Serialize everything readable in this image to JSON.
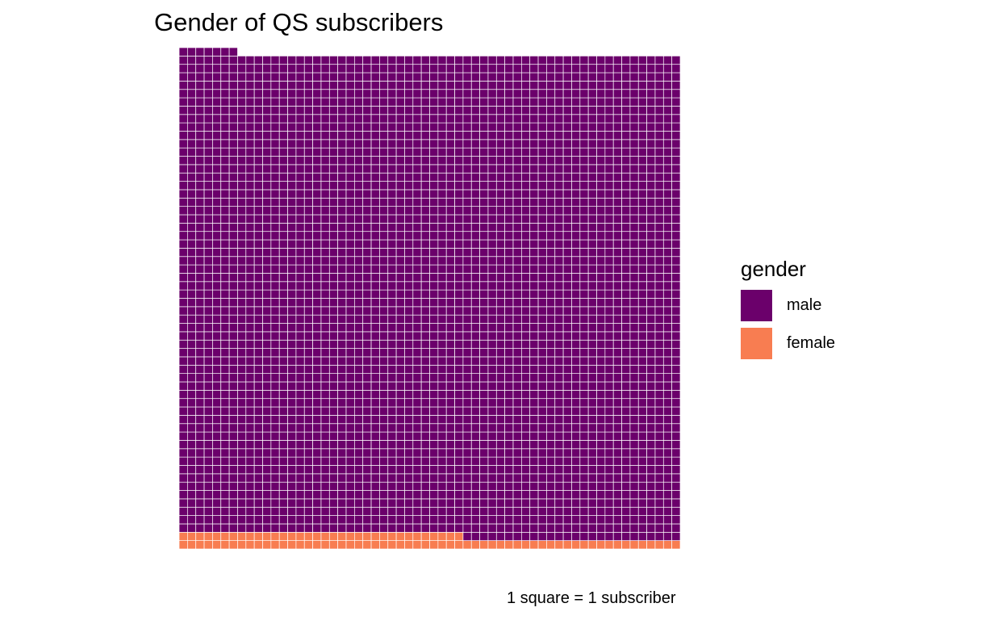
{
  "title": "Gender of QS subscribers",
  "caption": "1 square = 1 subscriber",
  "legend": {
    "title": "gender",
    "items": [
      {
        "label": "male",
        "color": "#6b006b"
      },
      {
        "label": "female",
        "color": "#f87d51"
      }
    ]
  },
  "chart_data": {
    "type": "waffle",
    "title": "Gender of QS subscribers",
    "caption": "1 square = 1 subscriber",
    "legend_title": "gender",
    "legend_position": "right",
    "categories": [
      "male",
      "female"
    ],
    "values": [
      3453,
      94
    ],
    "colors": [
      "#6b006b",
      "#f87d51"
    ],
    "units_per_square": 1,
    "rows": 60,
    "fill_order": "column-wise from bottom-left, bottom to top",
    "grid": false
  }
}
